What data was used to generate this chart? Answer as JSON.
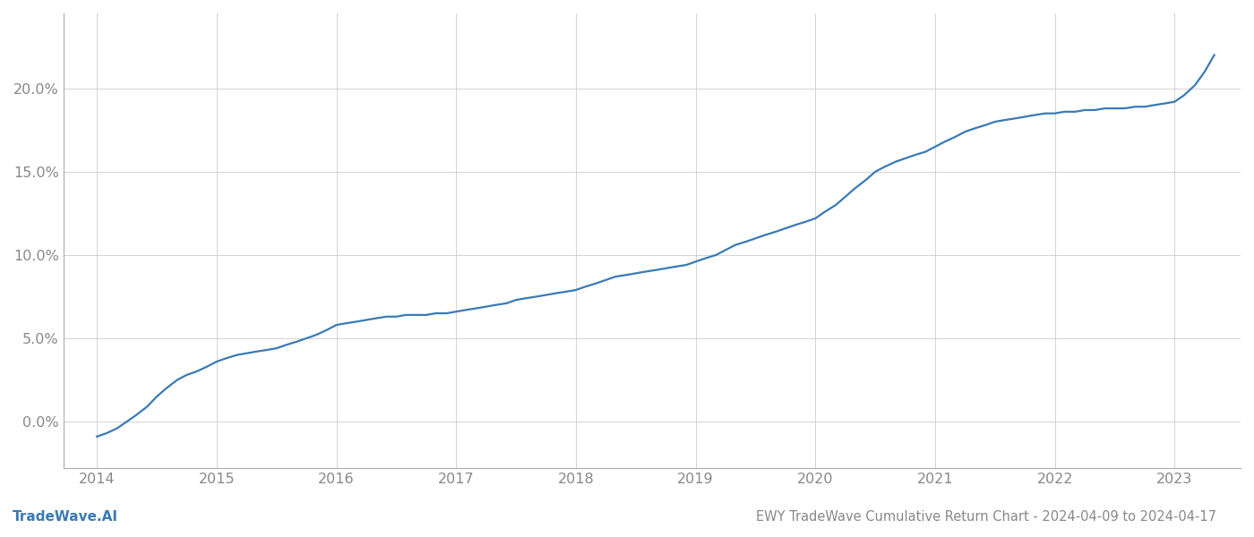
{
  "title": "EWY TradeWave Cumulative Return Chart - 2024-04-09 to 2024-04-17",
  "watermark": "TradeWave.AI",
  "line_color": "#3a7ab5",
  "background_color": "#ffffff",
  "grid_color": "#cccccc",
  "x_values": [
    2014.0,
    2014.08,
    2014.17,
    2014.25,
    2014.33,
    2014.42,
    2014.5,
    2014.58,
    2014.67,
    2014.75,
    2014.83,
    2014.92,
    2015.0,
    2015.08,
    2015.17,
    2015.25,
    2015.33,
    2015.42,
    2015.5,
    2015.58,
    2015.67,
    2015.75,
    2015.83,
    2015.92,
    2016.0,
    2016.08,
    2016.17,
    2016.25,
    2016.33,
    2016.42,
    2016.5,
    2016.58,
    2016.67,
    2016.75,
    2016.83,
    2016.92,
    2017.0,
    2017.08,
    2017.17,
    2017.25,
    2017.33,
    2017.42,
    2017.5,
    2017.58,
    2017.67,
    2017.75,
    2017.83,
    2017.92,
    2018.0,
    2018.08,
    2018.17,
    2018.25,
    2018.33,
    2018.42,
    2018.5,
    2018.58,
    2018.67,
    2018.75,
    2018.83,
    2018.92,
    2019.0,
    2019.08,
    2019.17,
    2019.25,
    2019.33,
    2019.42,
    2019.5,
    2019.58,
    2019.67,
    2019.75,
    2019.83,
    2019.92,
    2020.0,
    2020.08,
    2020.17,
    2020.25,
    2020.33,
    2020.42,
    2020.5,
    2020.58,
    2020.67,
    2020.75,
    2020.83,
    2020.92,
    2021.0,
    2021.08,
    2021.17,
    2021.25,
    2021.33,
    2021.42,
    2021.5,
    2021.58,
    2021.67,
    2021.75,
    2021.83,
    2021.92,
    2022.0,
    2022.08,
    2022.17,
    2022.25,
    2022.33,
    2022.42,
    2022.5,
    2022.58,
    2022.67,
    2022.75,
    2022.83,
    2022.92,
    2023.0,
    2023.08,
    2023.17,
    2023.25,
    2023.33
  ],
  "y_values": [
    -0.009,
    -0.007,
    -0.004,
    0.0,
    0.004,
    0.009,
    0.015,
    0.02,
    0.025,
    0.028,
    0.03,
    0.033,
    0.036,
    0.038,
    0.04,
    0.041,
    0.042,
    0.043,
    0.044,
    0.046,
    0.048,
    0.05,
    0.052,
    0.055,
    0.058,
    0.059,
    0.06,
    0.061,
    0.062,
    0.063,
    0.063,
    0.064,
    0.064,
    0.064,
    0.065,
    0.065,
    0.066,
    0.067,
    0.068,
    0.069,
    0.07,
    0.071,
    0.073,
    0.074,
    0.075,
    0.076,
    0.077,
    0.078,
    0.079,
    0.081,
    0.083,
    0.085,
    0.087,
    0.088,
    0.089,
    0.09,
    0.091,
    0.092,
    0.093,
    0.094,
    0.096,
    0.098,
    0.1,
    0.103,
    0.106,
    0.108,
    0.11,
    0.112,
    0.114,
    0.116,
    0.118,
    0.12,
    0.122,
    0.126,
    0.13,
    0.135,
    0.14,
    0.145,
    0.15,
    0.153,
    0.156,
    0.158,
    0.16,
    0.162,
    0.165,
    0.168,
    0.171,
    0.174,
    0.176,
    0.178,
    0.18,
    0.181,
    0.182,
    0.183,
    0.184,
    0.185,
    0.185,
    0.186,
    0.186,
    0.187,
    0.187,
    0.188,
    0.188,
    0.188,
    0.189,
    0.189,
    0.19,
    0.191,
    0.192,
    0.196,
    0.202,
    0.21,
    0.22
  ],
  "xlim": [
    2013.72,
    2023.55
  ],
  "ylim": [
    -0.028,
    0.245
  ],
  "yticks": [
    0.0,
    0.05,
    0.1,
    0.15,
    0.2
  ],
  "xticks": [
    2014,
    2015,
    2016,
    2017,
    2018,
    2019,
    2020,
    2021,
    2022,
    2023
  ],
  "tick_label_color": "#888888",
  "spine_color": "#aaaaaa",
  "title_fontsize": 10.5,
  "tick_fontsize": 11.5,
  "watermark_fontsize": 11,
  "line_width": 1.6
}
